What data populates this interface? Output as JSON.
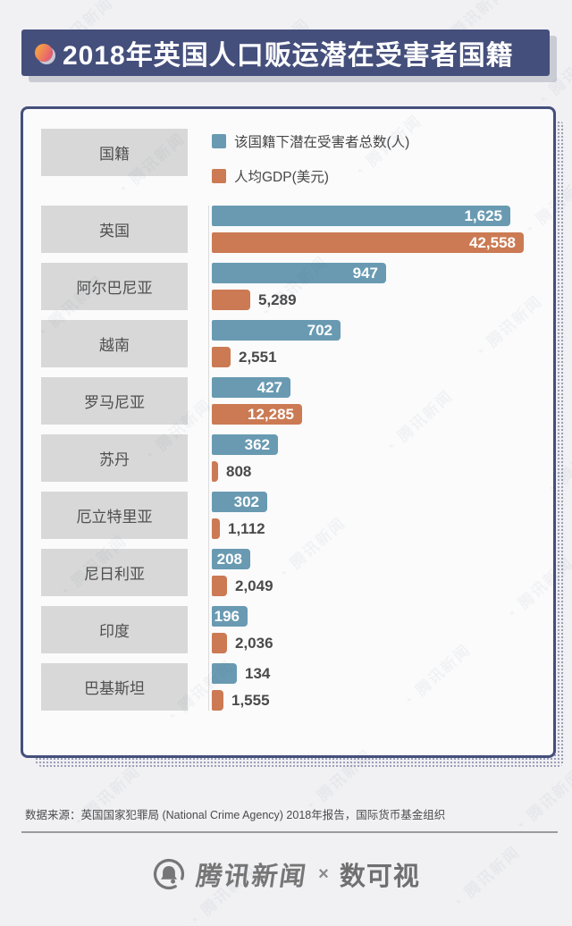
{
  "header": {
    "title": "2018年英国人口贩运潜在受害者国籍"
  },
  "chart_data": {
    "type": "bar",
    "orientation": "horizontal",
    "title": "2018年英国人口贩运潜在受害者国籍",
    "header_label": "国籍",
    "categories": [
      "英国",
      "阿尔巴尼亚",
      "越南",
      "罗马尼亚",
      "苏丹",
      "厄立特里亚",
      "尼日利亚",
      "印度",
      "巴基斯坦"
    ],
    "series": [
      {
        "name": "该国籍下潜在受害者总数(人)",
        "color": "#699ab2",
        "values": [
          1625,
          947,
          702,
          427,
          362,
          302,
          208,
          196,
          134
        ]
      },
      {
        "name": "人均GDP(美元)",
        "color": "#cb7a53",
        "values": [
          42558,
          5289,
          2551,
          12285,
          808,
          1112,
          2049,
          2036,
          1555
        ]
      }
    ],
    "value_label_format": "thousands-comma",
    "legend_position": "top",
    "grid": false,
    "xlim_victims": [
      0,
      1625
    ],
    "xlim_gdp": [
      0,
      42558
    ],
    "colors": {
      "banner_navy": "#454f7c",
      "bar_blue": "#699ab2",
      "bar_orange": "#cb7a53",
      "label_box_gray": "#d8d8d8",
      "inside_value_text": "#ffffff",
      "outside_value_text": "#4a4a4a"
    }
  },
  "footer": {
    "source": "数据来源：英国国家犯罪局 (National Crime Agency) 2018年报告，国际货币基金组织"
  },
  "branding": {
    "news_logo_text": "腾讯新闻",
    "separator": "×",
    "partner_logo_text": "数可视"
  }
}
